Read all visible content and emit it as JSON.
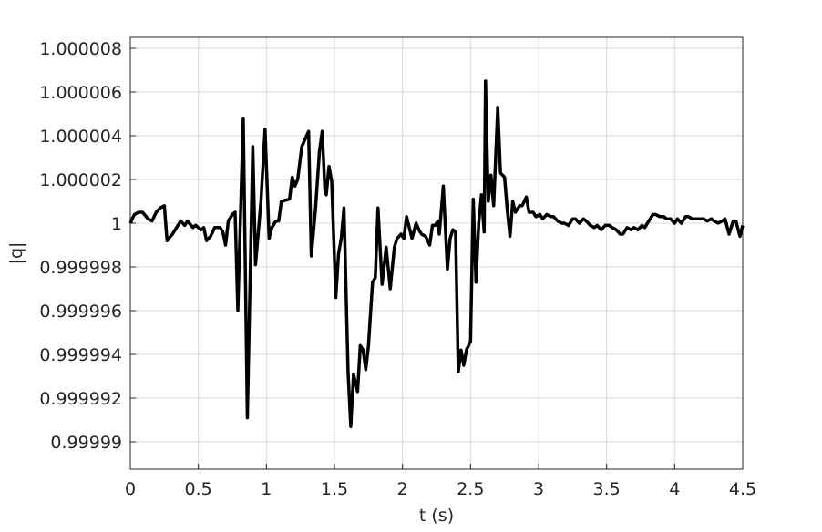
{
  "chart_data": {
    "type": "line",
    "xlabel": "t (s)",
    "ylabel": "|q|",
    "color": "#000000",
    "grid": true,
    "xlim": [
      0,
      4.5
    ],
    "xticks": [
      0,
      0.5,
      1,
      1.5,
      2,
      2.5,
      3,
      3.5,
      4,
      4.5
    ],
    "ylim": [
      0.99998875,
      1.0000085
    ],
    "yticks": [
      0.99999,
      0.999992,
      0.999994,
      0.999996,
      0.999998,
      1,
      1.000002,
      1.000004,
      1.000006,
      1.000008
    ],
    "x": [
      0,
      0.03,
      0.06,
      0.09,
      0.13,
      0.16,
      0.19,
      0.22,
      0.25,
      0.27,
      0.31,
      0.33,
      0.37,
      0.4,
      0.42,
      0.46,
      0.48,
      0.52,
      0.54,
      0.56,
      0.59,
      0.62,
      0.66,
      0.68,
      0.7,
      0.72,
      0.75,
      0.77,
      0.79,
      0.83,
      0.86,
      0.9,
      0.92,
      0.96,
      0.99,
      1.02,
      1.04,
      1.07,
      1.09,
      1.11,
      1.17,
      1.19,
      1.21,
      1.23,
      1.26,
      1.31,
      1.33,
      1.36,
      1.39,
      1.41,
      1.43,
      1.44,
      1.46,
      1.48,
      1.51,
      1.53,
      1.55,
      1.57,
      1.6,
      1.62,
      1.64,
      1.67,
      1.69,
      1.71,
      1.73,
      1.75,
      1.78,
      1.8,
      1.82,
      1.85,
      1.88,
      1.91,
      1.94,
      1.96,
      1.99,
      2.01,
      2.03,
      2.07,
      2.1,
      2.12,
      2.14,
      2.17,
      2.2,
      2.22,
      2.24,
      2.26,
      2.27,
      2.28,
      2.3,
      2.33,
      2.35,
      2.37,
      2.39,
      2.41,
      2.43,
      2.45,
      2.47,
      2.5,
      2.52,
      2.54,
      2.56,
      2.58,
      2.6,
      2.61,
      2.63,
      2.65,
      2.67,
      2.7,
      2.72,
      2.75,
      2.77,
      2.79,
      2.81,
      2.83,
      2.86,
      2.88,
      2.91,
      2.93,
      2.96,
      2.98,
      3.01,
      3.03,
      3.06,
      3.09,
      3.11,
      3.14,
      3.17,
      3.19,
      3.22,
      3.25,
      3.27,
      3.3,
      3.33,
      3.35,
      3.38,
      3.41,
      3.43,
      3.46,
      3.49,
      3.52,
      3.54,
      3.57,
      3.6,
      3.62,
      3.65,
      3.68,
      3.7,
      3.73,
      3.76,
      3.78,
      3.81,
      3.84,
      3.86,
      3.89,
      3.92,
      3.94,
      3.97,
      4.0,
      4.02,
      4.05,
      4.08,
      4.1,
      4.13,
      4.16,
      4.19,
      4.21,
      4.24,
      4.27,
      4.29,
      4.32,
      4.35,
      4.37,
      4.4,
      4.43,
      4.45,
      4.48,
      4.5
    ],
    "values": [
      1,
      1.0000004,
      1.0000005,
      1.0000005,
      1.0000002,
      1.0000001,
      1.0000005,
      1.0000007,
      1.0000008,
      0.9999992,
      0.9999995,
      0.9999997,
      1.0000001,
      0.9999999,
      1.0000001,
      0.9999998,
      0.9999999,
      0.9999997,
      0.9999998,
      0.9999992,
      0.9999994,
      0.9999998,
      0.9999998,
      0.9999996,
      0.999999,
      1.0000001,
      1.0000004,
      1.0000005,
      0.999996,
      1.0000048,
      0.9999911,
      1.0000035,
      0.9999981,
      1.000001,
      1.0000043,
      0.9999993,
      0.9999998,
      1.0000001,
      1.0000001,
      1.000001,
      1.0000011,
      1.0000021,
      1.0000017,
      1.000002,
      1.0000035,
      1.0000042,
      0.9999985,
      1.0000006,
      1.0000033,
      1.0000042,
      1.0000015,
      1.0000013,
      1.0000026,
      1.0000019,
      0.9999966,
      0.9999986,
      0.9999993,
      1.0000007,
      0.9999932,
      0.9999907,
      0.9999931,
      0.9999923,
      0.9999944,
      0.9999942,
      0.9999933,
      0.9999944,
      0.9999973,
      0.9999975,
      1.0000007,
      0.9999972,
      0.9999989,
      0.999997,
      0.9999989,
      0.9999993,
      0.9999995,
      0.9999993,
      1.0000003,
      0.9999993,
      1,
      0.9999997,
      0.9999995,
      0.9999994,
      0.999999,
      0.9999999,
      0.9999999,
      1.0000001,
      0.9999995,
      1.0000002,
      1.0000017,
      0.9999979,
      0.9999993,
      0.9999997,
      0.9999996,
      0.9999932,
      0.9999942,
      0.9999935,
      0.9999942,
      0.9999946,
      1.0000011,
      0.9999973,
      1,
      1.0000013,
      0.9999996,
      1.0000065,
      1.000001,
      1.0000022,
      1.0000008,
      1.0000053,
      1.0000023,
      1.0000021,
      1.0000006,
      0.9999994,
      1.000001,
      1.0000005,
      1.0000008,
      1.0000008,
      1.0000012,
      1.0000005,
      1.0000005,
      1.0000003,
      1.0000004,
      1.0000002,
      1.0000004,
      1.0000003,
      1.0000003,
      1.0000001,
      1,
      1,
      0.9999999,
      1.0000002,
      1.0000002,
      1,
      1.0000002,
      1.0000001,
      0.9999999,
      0.9999998,
      0.9999999,
      0.9999997,
      0.9999999,
      0.9999999,
      0.9999998,
      0.9999997,
      0.9999995,
      0.9999995,
      0.9999998,
      0.9999997,
      0.9999998,
      0.9999997,
      0.9999999,
      0.9999998,
      1.0000001,
      1.0000004,
      1.0000004,
      1.0000003,
      1.0000003,
      1.0000002,
      1.0000002,
      1,
      1.0000002,
      1,
      1.0000003,
      1.0000003,
      1.0000002,
      1.0000002,
      1.0000002,
      1.0000002,
      1.0000001,
      1.0000002,
      1.0000001,
      1,
      1.0000001,
      1.0000002,
      0.9999995,
      1.0000001,
      1.0000001,
      0.9999994,
      0.9999999
    ]
  }
}
